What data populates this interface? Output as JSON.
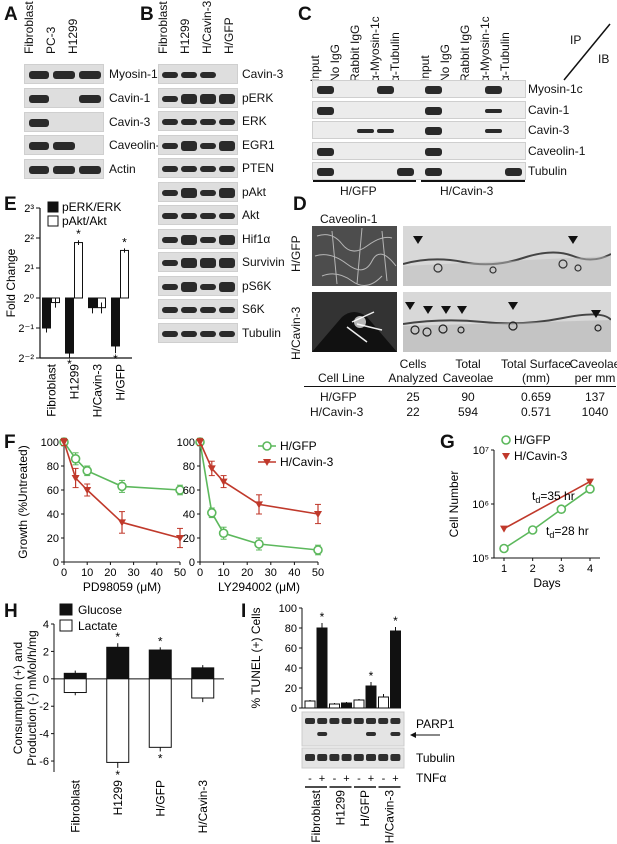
{
  "panels": {
    "A": {
      "label": "A",
      "lanes": [
        "Fibroblast",
        "PC-3",
        "H1299"
      ],
      "blots": [
        "Myosin-1c",
        "Cavin-1",
        "Cavin-3",
        "Caveolin-1",
        "Actin"
      ]
    },
    "B": {
      "label": "B",
      "lanes": [
        "Fibroblast",
        "H1299",
        "H/Cavin-3",
        "H/GFP"
      ],
      "blots": [
        "Cavin-3",
        "pERK",
        "ERK",
        "EGR1",
        "PTEN",
        "pAkt",
        "Akt",
        "Hif1α",
        "Survivin",
        "pS6K",
        "S6K",
        "Tubulin"
      ]
    },
    "C": {
      "label": "C",
      "lanes": [
        "Input",
        "No IgG",
        "Rabbit IgG",
        "α-Myosin-1c",
        "α-Tubulin",
        "Input",
        "No IgG",
        "Rabbit IgG",
        "α-Myosin-1c",
        "α-Tubulin"
      ],
      "ip": "IP",
      "ib": "IB",
      "blots": [
        "Myosin-1c",
        "Cavin-1",
        "Cavin-3",
        "Caveolin-1",
        "Tubulin"
      ],
      "groups": [
        "H/GFP",
        "H/Cavin-3"
      ]
    },
    "D": {
      "label": "D",
      "stain": "Caveolin-1",
      "rows": [
        "H/GFP",
        "H/Cavin-3"
      ],
      "table_headers": [
        "Cell Line",
        "Cells Analyzed",
        "Total Caveolae",
        "Total Surface (mm)",
        "Caveolae per mm"
      ],
      "table_header_lines": [
        [
          "",
          "Cells",
          "Total",
          "Total Surface",
          "Caveolae"
        ],
        [
          "Cell Line",
          "Analyzed",
          "Caveolae",
          "(mm)",
          "per mm"
        ]
      ],
      "table_rows": [
        [
          "H/GFP",
          "25",
          "90",
          "0.659",
          "137"
        ],
        [
          "H/Cavin-3",
          "22",
          "594",
          "0.571",
          "1040"
        ]
      ]
    },
    "E": {
      "label": "E"
    },
    "F": {
      "label": "F"
    },
    "G": {
      "label": "G"
    },
    "H": {
      "label": "H"
    },
    "I": {
      "label": "I",
      "blots": [
        "PARP1",
        "Tubulin"
      ],
      "treatment": "TNFα",
      "signs": [
        "-",
        "+",
        "-",
        "+",
        "-",
        "+",
        "-",
        "+"
      ]
    }
  },
  "chart_data": [
    {
      "panel": "E",
      "type": "bar",
      "categories": [
        "Fibroblast",
        "H1299",
        "H/Cavin-3",
        "H/GFP"
      ],
      "series": [
        {
          "name": "pERK/ERK",
          "values": [
            0.5,
            0.28,
            0.8,
            0.33
          ],
          "errors": [
            0.05,
            0.03,
            0.1,
            0.05
          ],
          "color": "#111111",
          "sig": [
            "",
            "*",
            "",
            "*"
          ]
        },
        {
          "name": "pAkt/Akt",
          "values": [
            0.9,
            3.6,
            0.8,
            3.0
          ],
          "errors": [
            0.1,
            0.2,
            0.1,
            0.15
          ],
          "color": "#ffffff",
          "sig": [
            "",
            "*",
            "",
            "*"
          ]
        }
      ],
      "ylabel": "Fold Change",
      "yscale": "log2",
      "yticks": [
        "2⁻²",
        "2⁻¹",
        "2⁰",
        "2¹",
        "2²",
        "2³"
      ],
      "ylim": [
        -2,
        3
      ]
    },
    {
      "panel": "F1",
      "type": "line",
      "xlabel": "PD98059 (μM)",
      "ylabel": "Growth (%Untreated)",
      "x": [
        0,
        5,
        10,
        25,
        50
      ],
      "xticks": [
        0,
        10,
        20,
        30,
        40,
        50
      ],
      "yticks": [
        0,
        20,
        40,
        60,
        80,
        100
      ],
      "ylim": [
        0,
        100
      ],
      "series": [
        {
          "name": "H/GFP",
          "values": [
            100,
            86,
            76,
            63,
            60
          ],
          "errors": [
            3,
            5,
            4,
            5,
            4
          ],
          "color": "#5cb85c",
          "marker": "circle"
        },
        {
          "name": "H/Cavin-3",
          "values": [
            100,
            70,
            60,
            33,
            20
          ],
          "errors": [
            3,
            8,
            5,
            9,
            8
          ],
          "color": "#c0392b",
          "marker": "triangle"
        }
      ]
    },
    {
      "panel": "F2",
      "type": "line",
      "xlabel": "LY294002 (μM)",
      "x": [
        0,
        5,
        10,
        25,
        50
      ],
      "xticks": [
        0,
        10,
        20,
        30,
        40,
        50
      ],
      "yticks": [
        0,
        20,
        40,
        60,
        80,
        100
      ],
      "ylim": [
        0,
        100
      ],
      "series": [
        {
          "name": "H/GFP",
          "values": [
            100,
            41,
            24,
            15,
            10
          ],
          "errors": [
            3,
            4,
            5,
            5,
            4
          ],
          "color": "#5cb85c",
          "marker": "circle"
        },
        {
          "name": "H/Cavin-3",
          "values": [
            100,
            78,
            67,
            48,
            40
          ],
          "errors": [
            3,
            6,
            5,
            8,
            8
          ],
          "color": "#c0392b",
          "marker": "triangle"
        }
      ]
    },
    {
      "panel": "G",
      "type": "line",
      "xlabel": "Days",
      "ylabel": "Cell Number",
      "yscale": "log10",
      "x": [
        1,
        2,
        3,
        4
      ],
      "xticks": [
        1,
        2,
        3,
        4
      ],
      "yticks": [
        "10⁵",
        "10⁶",
        "10⁷"
      ],
      "series": [
        {
          "name": "H/GFP",
          "values": [
            150000,
            330000,
            800000,
            1900000
          ],
          "color": "#5cb85c",
          "marker": "circle"
        },
        {
          "name": "H/Cavin-3",
          "values": [
            350000,
            0,
            0,
            2600000
          ],
          "color": "#c0392b",
          "marker": "triangle"
        }
      ],
      "annotations": [
        "tₐ=35 hr",
        "tₐ=28 hr"
      ],
      "annotation_parts": [
        {
          "t": "t",
          "sub": "d",
          "rest": "=35 hr"
        },
        {
          "t": "t",
          "sub": "d",
          "rest": "=28 hr"
        }
      ]
    },
    {
      "panel": "H",
      "type": "bar",
      "categories": [
        "Fibroblast",
        "H1299",
        "H/GFP",
        "H/Cavin-3"
      ],
      "ylabel": "Consumption (+) and Production (-) mMol/h/mg",
      "ylabel_lines": [
        "Consumption (+) and",
        "Production (-) mMol/h/mg"
      ],
      "yticks": [
        -6,
        -4,
        -2,
        0,
        2,
        4
      ],
      "ylim": [
        -6.8,
        4
      ],
      "series": [
        {
          "name": "Glucose",
          "values": [
            0.4,
            2.3,
            2.1,
            0.8
          ],
          "errors": [
            0.2,
            0.3,
            0.2,
            0.2
          ],
          "color": "#111111",
          "sig": [
            "",
            "*",
            "*",
            ""
          ]
        },
        {
          "name": "Lactate",
          "values": [
            -1.0,
            -6.1,
            -5.0,
            -1.4
          ],
          "errors": [
            0.2,
            0.4,
            0.3,
            0.3
          ],
          "color": "#ffffff",
          "sig": [
            "",
            "*",
            "*",
            ""
          ]
        }
      ]
    },
    {
      "panel": "I",
      "type": "bar",
      "ylabel": "% TUNEL (+) Cells",
      "yticks": [
        0,
        20,
        40,
        60,
        80,
        100
      ],
      "ylim": [
        0,
        100
      ],
      "groups": [
        "Fibroblast",
        "H1299",
        "H/GFP",
        "H/Cavin-3"
      ],
      "series": [
        {
          "name": "-",
          "values": [
            7,
            4,
            8,
            11
          ],
          "errors": [
            1,
            1,
            1,
            3
          ],
          "color": "#ffffff"
        },
        {
          "name": "+",
          "values": [
            80,
            5,
            22,
            77
          ],
          "errors": [
            5,
            1,
            4,
            4
          ],
          "color": "#111111",
          "sig": [
            "*",
            "",
            "*",
            "*"
          ]
        }
      ]
    }
  ]
}
